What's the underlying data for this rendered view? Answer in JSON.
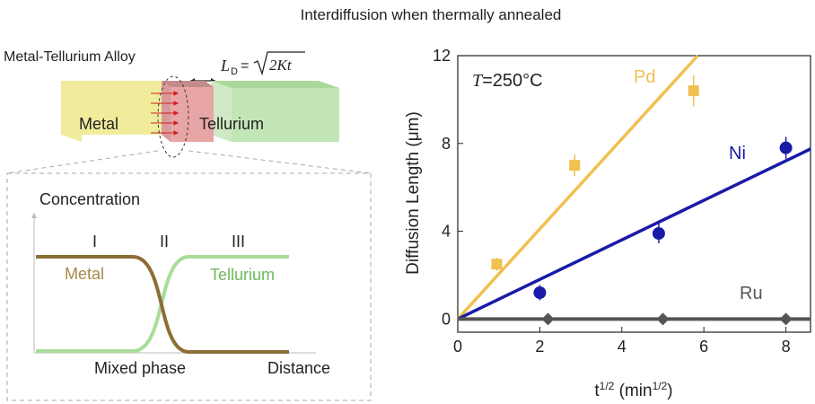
{
  "title": "Interdiffusion when thermally annealed",
  "schematic": {
    "alloy_label": "Metal-Tellurium Alloy",
    "formula": {
      "L": "L",
      "L_sub": "D",
      "eq": "=",
      "radicand": "2Kt"
    },
    "metal_label": "Metal",
    "tellurium_label": "Tellurium",
    "colors": {
      "metal": "#f0ea9a",
      "tellurium": "#bfe3b3",
      "alloy": "#e8a8a8",
      "arrow": "#d02020"
    }
  },
  "profile": {
    "ylabel": "Concentration",
    "xlabel": "Distance",
    "regions": [
      "I",
      "II",
      "III"
    ],
    "metal_label": "Metal",
    "tellurium_label": "Tellurium",
    "mixed_label": "Mixed phase",
    "colors": {
      "metal": "#9b7b3b",
      "tellurium": "#8fcf7f"
    }
  },
  "chart_data": {
    "type": "scatter",
    "annotation": {
      "T": "T",
      "rest": "=250°C"
    },
    "xlabel": {
      "base": "t",
      "sup1": "1/2",
      "mid": " (min",
      "sup2": "1/2",
      "end": ")"
    },
    "ylabel": "Diffusion Length (μm)",
    "xlim": [
      0,
      8.6
    ],
    "ylim": [
      -0.6,
      12
    ],
    "xticks": [
      "0",
      "2",
      "4",
      "6",
      "8"
    ],
    "yticks": [
      "0",
      "4",
      "8",
      "12"
    ],
    "xtick_values": [
      0,
      2,
      4,
      6,
      8
    ],
    "ytick_values": [
      0,
      4,
      8,
      12
    ],
    "series": [
      {
        "name": "Pd",
        "color": "#f0c050",
        "marker": "square",
        "points": [
          {
            "x": 0.95,
            "y": 2.5,
            "err": 0.3
          },
          {
            "x": 2.85,
            "y": 7.0,
            "err": 0.5
          },
          {
            "x": 5.75,
            "y": 10.4,
            "err": 0.7
          }
        ],
        "fit": [
          [
            0,
            0
          ],
          [
            5.85,
            12
          ]
        ]
      },
      {
        "name": "Ni",
        "color": "#1a1aa8",
        "marker": "circle",
        "points": [
          {
            "x": 2.0,
            "y": 1.2,
            "err": 0.35
          },
          {
            "x": 4.9,
            "y": 3.9,
            "err": 0.45
          },
          {
            "x": 8.0,
            "y": 7.8,
            "err": 0.5
          }
        ],
        "fit": [
          [
            0,
            0
          ],
          [
            8.6,
            7.75
          ]
        ]
      },
      {
        "name": "Ru",
        "color": "#555555",
        "marker": "diamond",
        "points": [
          {
            "x": 2.2,
            "y": 0.0,
            "err": 0
          },
          {
            "x": 5.0,
            "y": 0.0,
            "err": 0
          },
          {
            "x": 8.0,
            "y": 0.0,
            "err": 0
          }
        ],
        "fit": [
          [
            0,
            0
          ],
          [
            8.6,
            0
          ]
        ]
      }
    ]
  }
}
